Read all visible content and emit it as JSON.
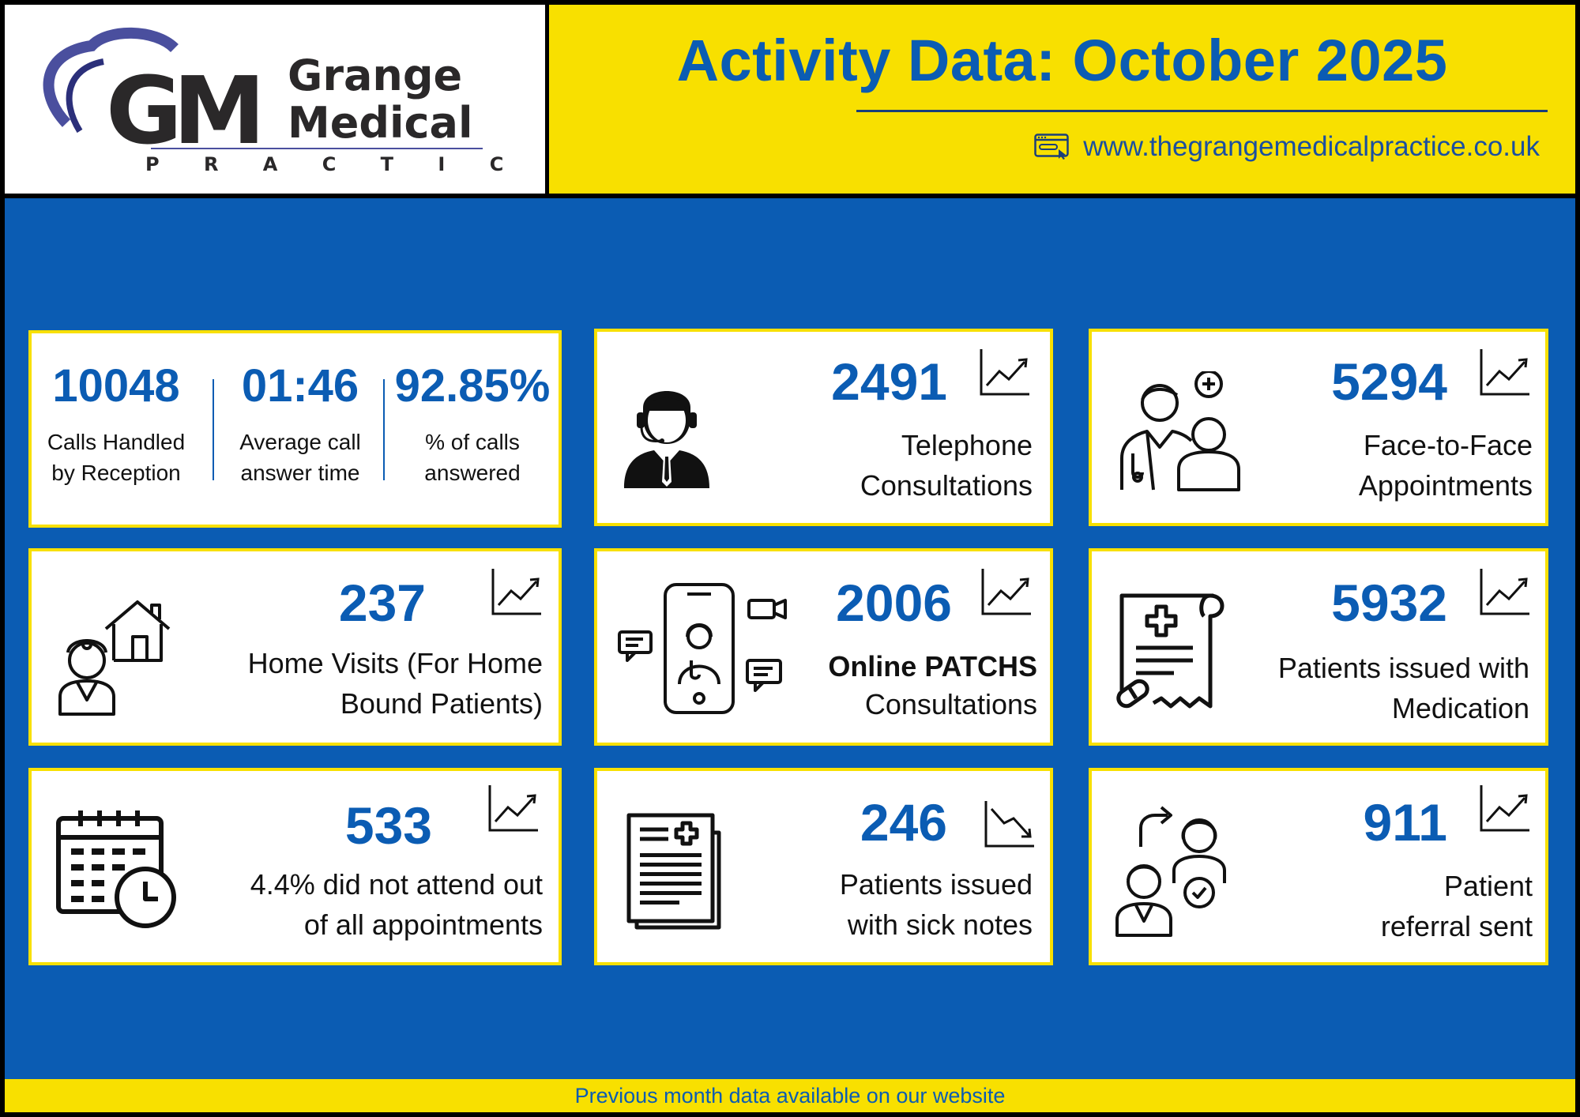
{
  "header": {
    "logo": {
      "letters": "GM",
      "name_line1": "Grange",
      "name_line2": "Medical",
      "tagline": "P R A C T I C E"
    },
    "title": "Activity Data: October 2025",
    "website": "www.thegrangemedicalpractice.co.uk"
  },
  "reception": {
    "stats": [
      {
        "value": "10048",
        "label_line1": "Calls Handled",
        "label_line2": "by Reception"
      },
      {
        "value": "01:46",
        "label_line1": "Average call",
        "label_line2": "answer time"
      },
      {
        "value": "92.85%",
        "label_line1": "% of calls",
        "label_line2": "answered"
      }
    ]
  },
  "cards": {
    "telephone": {
      "value": "2491",
      "line1": "Telephone",
      "line2": "Consultations",
      "trend": "up"
    },
    "face_to_face": {
      "value": "5294",
      "line1": "Face-to-Face",
      "line2": "Appointments",
      "trend": "up"
    },
    "home_visits": {
      "value": "237",
      "line1": "Home Visits (For Home",
      "line2": "Bound Patients)",
      "trend": "up"
    },
    "online": {
      "value": "2006",
      "line1": "Online PATCHS",
      "line2": "Consultations",
      "trend": "up"
    },
    "medication": {
      "value": "5932",
      "line1": "Patients issued with",
      "line2": "Medication",
      "trend": "up"
    },
    "dna": {
      "value": "533",
      "line1": "4.4% did not attend out",
      "line2": "of all appointments",
      "trend": "up"
    },
    "sick_notes": {
      "value": "246",
      "line1": "Patients issued",
      "line2": "with sick notes",
      "trend": "down"
    },
    "referrals": {
      "value": "911",
      "line1": "Patient",
      "line2": "referral sent",
      "trend": "up"
    }
  },
  "footer": {
    "text": "Previous month data available on our website"
  },
  "colors": {
    "brand_blue": "#0b5cb3",
    "accent_yellow": "#f8e000"
  }
}
